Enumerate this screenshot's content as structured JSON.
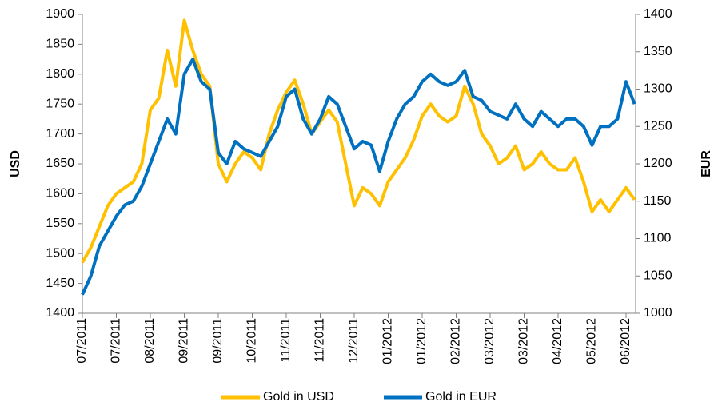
{
  "chart_data": {
    "type": "line",
    "y_label": "USD",
    "y2_label": "EUR",
    "categories": [
      "07/2011",
      null,
      null,
      null,
      "07/2011",
      null,
      null,
      null,
      "08/2011",
      null,
      null,
      null,
      "09/2011",
      null,
      null,
      null,
      "09/2011",
      null,
      null,
      null,
      "10/2011",
      null,
      null,
      null,
      "11/2011",
      null,
      null,
      null,
      "11/2011",
      null,
      null,
      null,
      "12/2011",
      null,
      null,
      null,
      "01/2012",
      null,
      null,
      null,
      "01/2012",
      null,
      null,
      null,
      "02/2012",
      null,
      null,
      null,
      "03/2012",
      null,
      null,
      null,
      "03/2012",
      null,
      null,
      null,
      "04/2012",
      null,
      null,
      null,
      "05/2012",
      null,
      null,
      null,
      "06/2012",
      null
    ],
    "series": [
      {
        "name": "Gold in USD",
        "color": "#ffc000",
        "axis": "y",
        "values": [
          1485,
          1510,
          1545,
          1580,
          1600,
          1610,
          1620,
          1650,
          1740,
          1760,
          1840,
          1780,
          1890,
          1840,
          1800,
          1780,
          1650,
          1620,
          1650,
          1670,
          1660,
          1640,
          1700,
          1740,
          1770,
          1790,
          1750,
          1700,
          1720,
          1740,
          1720,
          1650,
          1580,
          1610,
          1600,
          1580,
          1620,
          1640,
          1660,
          1690,
          1730,
          1750,
          1730,
          1720,
          1730,
          1780,
          1750,
          1700,
          1680,
          1650,
          1660,
          1680,
          1640,
          1650,
          1670,
          1650,
          1640,
          1640,
          1660,
          1620,
          1570,
          1590,
          1570,
          1590,
          1610,
          1590
        ]
      },
      {
        "name": "Gold in EUR",
        "color": "#0070c0",
        "axis": "y2",
        "values": [
          1025,
          1050,
          1090,
          1110,
          1130,
          1145,
          1150,
          1170,
          1200,
          1230,
          1260,
          1240,
          1320,
          1340,
          1310,
          1300,
          1215,
          1200,
          1230,
          1220,
          1215,
          1210,
          1230,
          1250,
          1290,
          1300,
          1260,
          1240,
          1260,
          1290,
          1280,
          1250,
          1220,
          1230,
          1225,
          1190,
          1230,
          1260,
          1280,
          1290,
          1310,
          1320,
          1310,
          1305,
          1310,
          1325,
          1290,
          1285,
          1270,
          1265,
          1260,
          1280,
          1260,
          1250,
          1270,
          1260,
          1250,
          1260,
          1260,
          1250,
          1225,
          1250,
          1250,
          1260,
          1310,
          1280
        ]
      }
    ],
    "ylim": [
      1400,
      1900
    ],
    "yticks": [
      1400,
      1450,
      1500,
      1550,
      1600,
      1650,
      1700,
      1750,
      1800,
      1850,
      1900
    ],
    "y2lim": [
      1000,
      1400
    ],
    "y2ticks": [
      1000,
      1050,
      1100,
      1150,
      1200,
      1250,
      1300,
      1350,
      1400
    ],
    "legend": "bottom"
  }
}
